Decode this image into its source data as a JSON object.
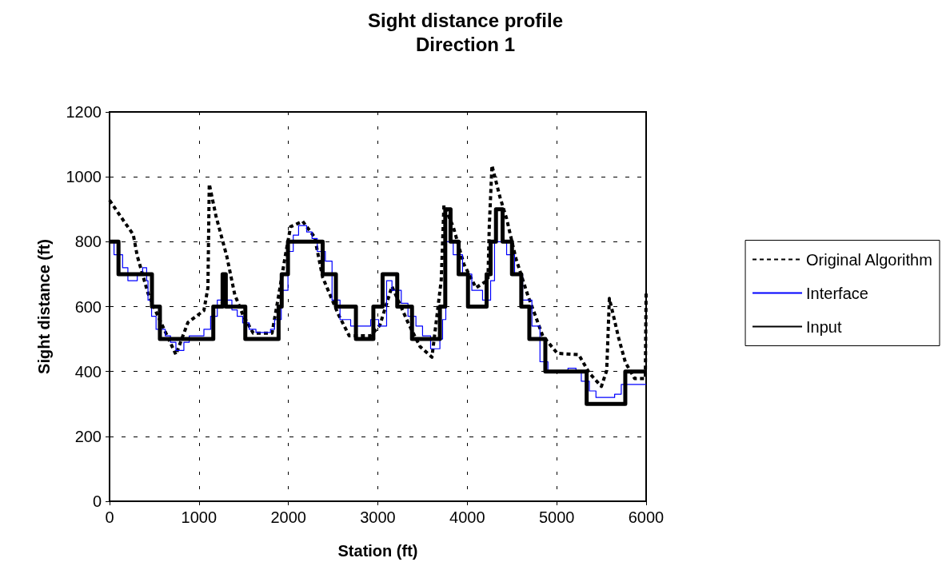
{
  "chart_data": {
    "type": "line",
    "title": "Sight distance profile",
    "subtitle": "Direction 1",
    "xlabel": "Station (ft)",
    "ylabel": "Sight distance (ft)",
    "xlim": [
      0,
      6000
    ],
    "xticks": [
      0,
      1000,
      2000,
      3000,
      4000,
      5000,
      6000
    ],
    "ylim": [
      0,
      1200
    ],
    "yticks": [
      0,
      200,
      400,
      600,
      800,
      1000,
      1200
    ],
    "grid": true,
    "legend": "right",
    "marker": "none",
    "series": [
      {
        "name": "Original Algorithm",
        "type": "line",
        "line_style": "dashed",
        "color": "#000000",
        "x": [
          0,
          161,
          265,
          310,
          430,
          534,
          742,
          876,
          1055,
          1100,
          1115,
          1190,
          1310,
          1400,
          1490,
          1607,
          1817,
          1890,
          1965,
          2024,
          2159,
          2293,
          2383,
          2560,
          2680,
          2920,
          3023,
          3158,
          3337,
          3471,
          3605,
          3709,
          3739,
          3843,
          3962,
          4097,
          4231,
          4246,
          4276,
          4366,
          4440,
          4544,
          4679,
          4768,
          4843,
          5007,
          5246,
          5365,
          5500,
          5559,
          5589,
          5694,
          5768,
          5872,
          5991,
          6000
        ],
        "values": [
          928,
          863,
          822,
          756,
          641,
          575,
          452,
          551,
          588,
          658,
          978,
          879,
          756,
          637,
          575,
          518,
          518,
          633,
          756,
          846,
          863,
          814,
          690,
          575,
          510,
          510,
          543,
          662,
          551,
          477,
          444,
          682,
          912,
          846,
          731,
          658,
          682,
          846,
          1035,
          937,
          871,
          748,
          633,
          567,
          510,
          456,
          452,
          395,
          354,
          403,
          625,
          502,
          428,
          378,
          378,
          650
        ]
      },
      {
        "name": "Interface",
        "type": "step",
        "line_style": "solid",
        "color": "#0000ff",
        "x": [
          0,
          50,
          146,
          205,
          310,
          370,
          415,
          430,
          470,
          520,
          623,
          682,
          742,
          831,
          891,
          1055,
          1130,
          1205,
          1368,
          1428,
          1488,
          1562,
          1637,
          1800,
          1845,
          1920,
          1995,
          2054,
          2114,
          2204,
          2264,
          2323,
          2413,
          2488,
          2577,
          2696,
          2920,
          3009,
          3098,
          3158,
          3262,
          3337,
          3426,
          3500,
          3590,
          3694,
          3724,
          3760,
          3843,
          3947,
          4051,
          4171,
          4261,
          4305,
          4440,
          4529,
          4619,
          4723,
          4813,
          4902,
          5126,
          5216,
          5275,
          5365,
          5439,
          5648,
          5722,
          5812,
          6000
        ],
        "values": [
          800,
          760,
          720,
          680,
          700,
          720,
          680,
          620,
          570,
          530,
          510,
          490,
          465,
          490,
          510,
          530,
          570,
          620,
          590,
          570,
          550,
          530,
          520,
          530,
          560,
          650,
          770,
          820,
          850,
          830,
          810,
          770,
          740,
          620,
          560,
          540,
          560,
          540,
          680,
          650,
          610,
          570,
          540,
          510,
          470,
          500,
          560,
          800,
          760,
          700,
          650,
          620,
          680,
          800,
          760,
          700,
          620,
          540,
          430,
          400,
          410,
          400,
          370,
          340,
          320,
          330,
          360,
          360,
          360
        ]
      },
      {
        "name": "Input",
        "type": "step",
        "line_style": "solid",
        "color": "#000000",
        "x": [
          0,
          100,
          474,
          563,
          1160,
          1264,
          1300,
          1518,
          1890,
          1925,
          1995,
          2383,
          2531,
          2755,
          2950,
          3053,
          3217,
          3382,
          3694,
          3754,
          3813,
          3903,
          4008,
          4216,
          4261,
          4321,
          4395,
          4500,
          4604,
          4694,
          4873,
          5335,
          5767,
          6000
        ],
        "values": [
          800,
          700,
          600,
          500,
          600,
          700,
          600,
          500,
          600,
          700,
          800,
          700,
          600,
          500,
          600,
          700,
          600,
          500,
          600,
          900,
          800,
          700,
          600,
          700,
          800,
          900,
          800,
          700,
          600,
          500,
          400,
          300,
          400,
          400
        ]
      }
    ]
  }
}
